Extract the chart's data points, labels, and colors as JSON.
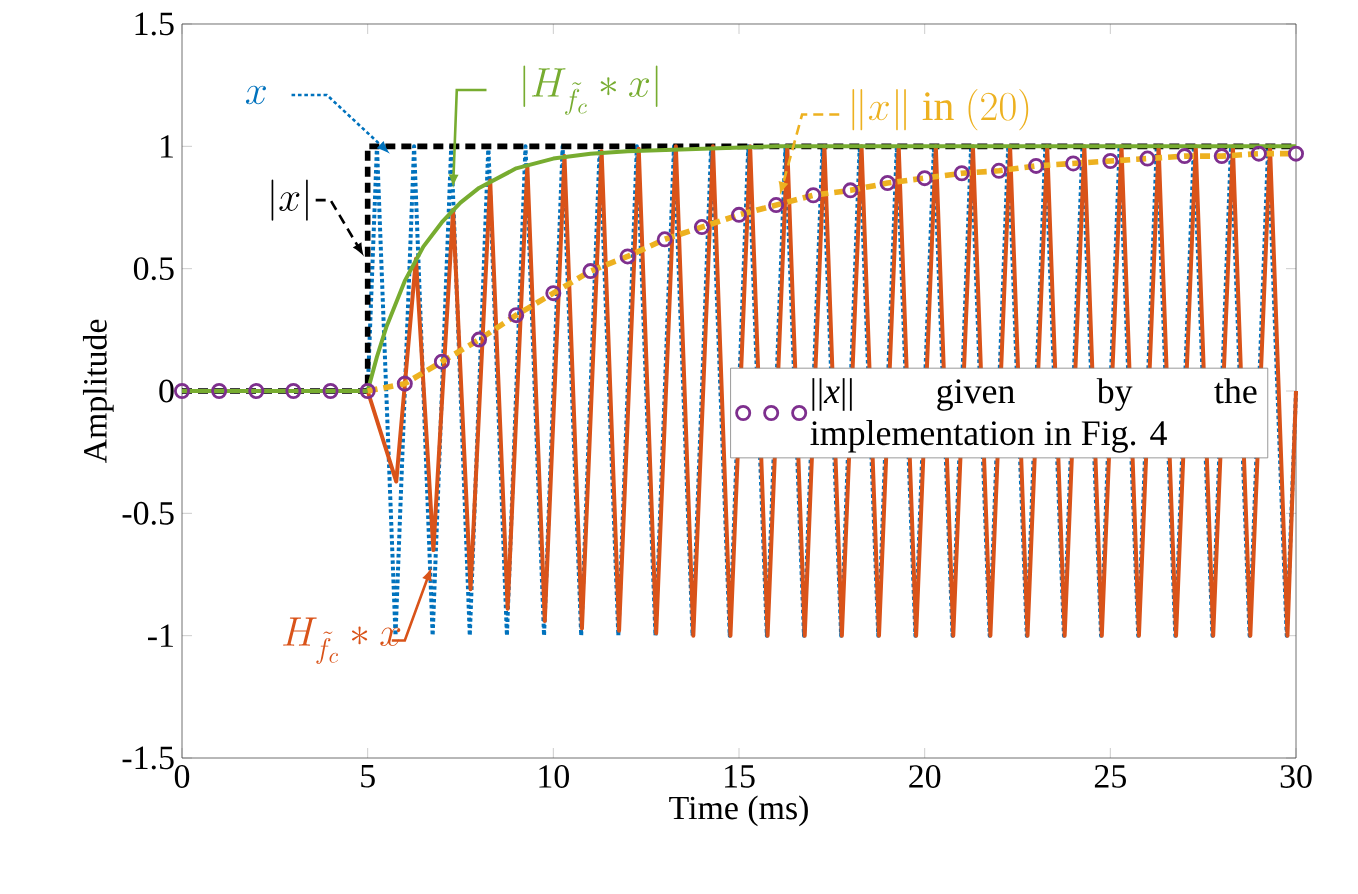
{
  "chart_data": {
    "type": "line",
    "xlabel": "Time (ms)",
    "ylabel": "Amplitude",
    "xlim": [
      0,
      30
    ],
    "ylim": [
      -1.5,
      1.5
    ],
    "xticks": [
      0,
      5,
      10,
      15,
      20,
      25,
      30
    ],
    "yticks": [
      -1.5,
      -1,
      -0.5,
      0,
      0.5,
      1,
      1.5
    ],
    "legend": "right",
    "series": [
      {
        "name": "x",
        "color": "#0072bd",
        "line_style": "dotted",
        "x": [
          0,
          5,
          5.25,
          5.75,
          6.25,
          6.75,
          7.25,
          7.75,
          8.25,
          8.75,
          9.25,
          9.75,
          10.25,
          10.75,
          11.25,
          11.75,
          12.25,
          12.75,
          13.25,
          13.75,
          14.25,
          14.75,
          15.25,
          15.75,
          16.25,
          16.75,
          17.25,
          17.75,
          18.25,
          18.75,
          19.25,
          19.75,
          20.25,
          20.75,
          21.25,
          21.75,
          22.25,
          22.75,
          23.25,
          23.75,
          24.25,
          24.75,
          25.25,
          25.75,
          26.25,
          26.75,
          27.25,
          27.75,
          28.25,
          28.75,
          29.25,
          29.75,
          30
        ],
        "values": [
          0,
          0,
          1,
          -1,
          1,
          -1,
          1,
          -1,
          1,
          -1,
          1,
          -1,
          1,
          -1,
          1,
          -1,
          1,
          -1,
          1,
          -1,
          1,
          -1,
          1,
          -1,
          1,
          -1,
          1,
          -1,
          1,
          -1,
          1,
          -1,
          1,
          -1,
          1,
          -1,
          1,
          -1,
          1,
          -1,
          1,
          -1,
          1,
          -1,
          1,
          -1,
          1,
          -1,
          1,
          -1,
          1,
          -1,
          0
        ]
      },
      {
        "name": "|x|",
        "color": "#000000",
        "line_style": "dashed",
        "x": [
          0,
          5,
          5,
          30
        ],
        "values": [
          0,
          0,
          1,
          1
        ]
      },
      {
        "name": "H_{\\tilde{f}_c} \\ast x",
        "color": "#d95319",
        "line_style": "solid",
        "x": [
          0,
          5,
          5.77,
          6.3,
          6.77,
          7.3,
          7.77,
          8.3,
          8.77,
          9.3,
          9.77,
          10.3,
          10.77,
          11.3,
          11.77,
          12.3,
          12.77,
          13.3,
          13.77,
          14.3,
          14.77,
          15.3,
          15.77,
          16.3,
          16.77,
          17.3,
          17.77,
          18.3,
          18.77,
          19.3,
          19.77,
          20.3,
          20.77,
          21.3,
          21.77,
          22.3,
          22.77,
          23.3,
          23.77,
          24.3,
          24.77,
          25.3,
          25.77,
          26.3,
          26.77,
          27.3,
          27.77,
          28.3,
          28.77,
          29.3,
          29.77,
          30
        ],
        "values": [
          0,
          0,
          -0.37,
          0.54,
          -0.65,
          0.74,
          -0.81,
          0.86,
          -0.89,
          0.92,
          -0.94,
          0.96,
          -0.97,
          0.98,
          -0.98,
          0.99,
          -0.99,
          1,
          -1,
          1,
          -1,
          1,
          -1,
          1,
          -1,
          1,
          -1,
          1,
          -1,
          1,
          -1,
          1,
          -1,
          1,
          -1,
          1,
          -1,
          1,
          -1,
          1,
          -1,
          1,
          -1,
          1,
          -1,
          1,
          -1,
          1,
          -1,
          1,
          -1,
          0
        ]
      },
      {
        "name": "|H_{\\tilde{f}_c} \\ast x|",
        "color": "#77ac30",
        "line_style": "solid",
        "x": [
          0,
          5,
          5.25,
          5.5,
          6,
          6.5,
          7,
          7.5,
          8,
          9,
          10,
          11,
          12,
          14,
          16,
          30
        ],
        "values": [
          0,
          0,
          0.14,
          0.26,
          0.45,
          0.59,
          0.69,
          0.77,
          0.83,
          0.91,
          0.95,
          0.97,
          0.98,
          0.99,
          1,
          1
        ]
      },
      {
        "name": "\\|x\\|\\ \\mathrm{in}\\ (20)",
        "color": "#edb120",
        "line_style": "dashed",
        "x": [
          5,
          6,
          7,
          8,
          9,
          10,
          11,
          12,
          13,
          14,
          15,
          16,
          17,
          18,
          19,
          20,
          21,
          22,
          23,
          24,
          25,
          26,
          27,
          28,
          29,
          30
        ],
        "values": [
          0,
          0.03,
          0.12,
          0.21,
          0.31,
          0.4,
          0.49,
          0.55,
          0.62,
          0.67,
          0.72,
          0.76,
          0.8,
          0.82,
          0.85,
          0.87,
          0.89,
          0.9,
          0.92,
          0.93,
          0.94,
          0.95,
          0.96,
          0.96,
          0.97,
          0.97
        ]
      },
      {
        "name": "||*x*|| given by the implementation in Fig. 4",
        "color": "#7e2f8e",
        "type": "scatter",
        "marker": "circle",
        "x": [
          0,
          1,
          2,
          3,
          4,
          5,
          6,
          7,
          8,
          9,
          10,
          11,
          12,
          13,
          14,
          15,
          16,
          17,
          18,
          19,
          20,
          21,
          22,
          23,
          24,
          25,
          26,
          27,
          28,
          29,
          30
        ],
        "values": [
          0,
          0,
          0,
          0,
          0,
          0,
          0.03,
          0.12,
          0.21,
          0.31,
          0.4,
          0.49,
          0.55,
          0.62,
          0.67,
          0.72,
          0.76,
          0.8,
          0.82,
          0.85,
          0.87,
          0.89,
          0.9,
          0.92,
          0.93,
          0.94,
          0.95,
          0.96,
          0.96,
          0.97,
          0.97
        ]
      }
    ]
  }
}
